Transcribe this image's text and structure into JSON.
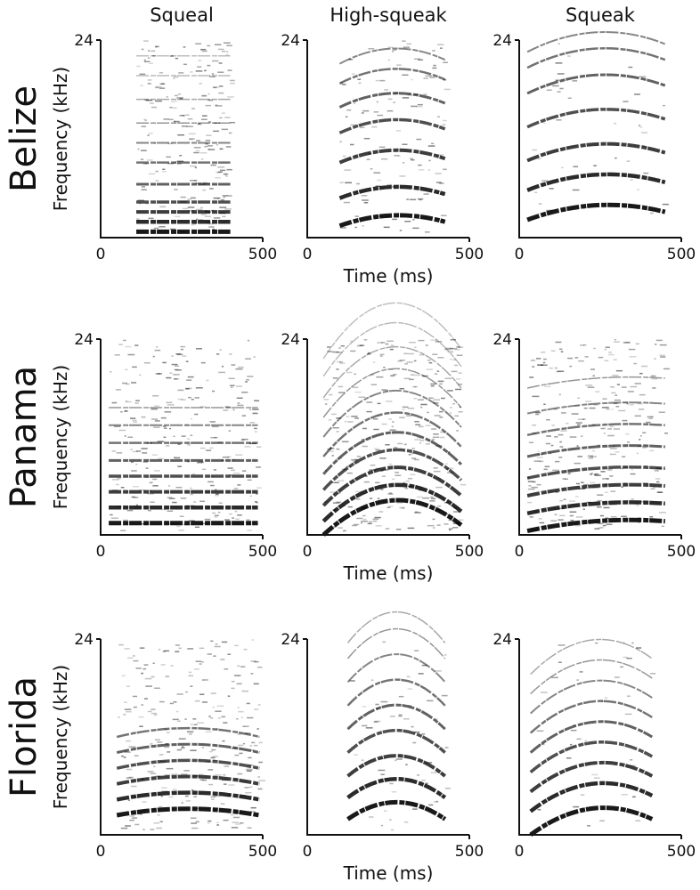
{
  "columns": [
    "Squeal",
    "High-squeak",
    "Squeak"
  ],
  "rows": [
    "Belize",
    "Panama",
    "Florida"
  ],
  "y_axis": {
    "label": "Frequency (kHz)",
    "top_tick": 24
  },
  "x_axis": {
    "label": "Time (ms)",
    "ticks": [
      0,
      500
    ]
  }
}
